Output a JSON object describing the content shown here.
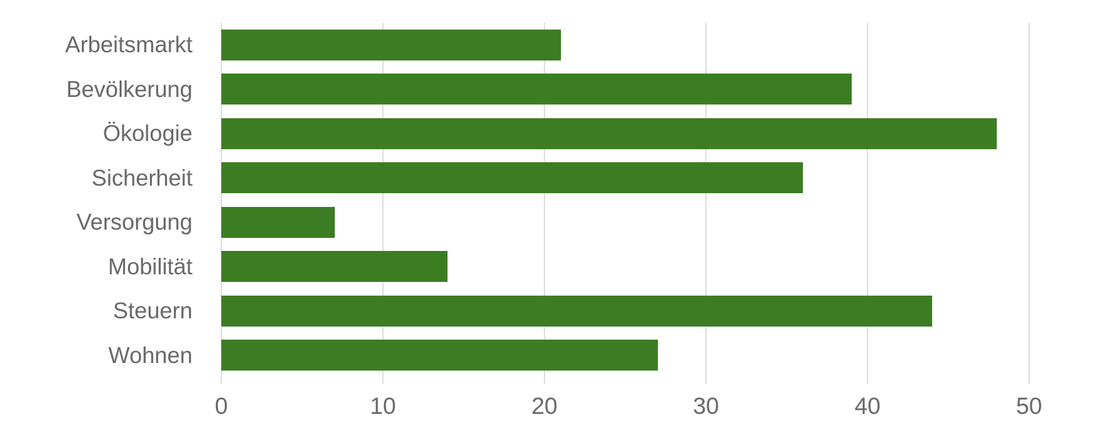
{
  "chart_data": {
    "type": "bar",
    "orientation": "horizontal",
    "categories": [
      "Arbeitsmarkt",
      "Bevölkerung",
      "Ökologie",
      "Sicherheit",
      "Versorgung",
      "Mobilität",
      "Steuern",
      "Wohnen"
    ],
    "values": [
      21,
      39,
      48,
      36,
      7,
      14,
      44,
      27
    ],
    "title": "",
    "xlabel": "",
    "ylabel": "",
    "xlim": [
      0,
      50
    ],
    "x_ticks": [
      0,
      10,
      20,
      30,
      40,
      50
    ],
    "grid": true,
    "legend": false,
    "colors": {
      "bar": "#3C7D23",
      "gridline": "#dedede",
      "label_text": "#696969"
    }
  }
}
